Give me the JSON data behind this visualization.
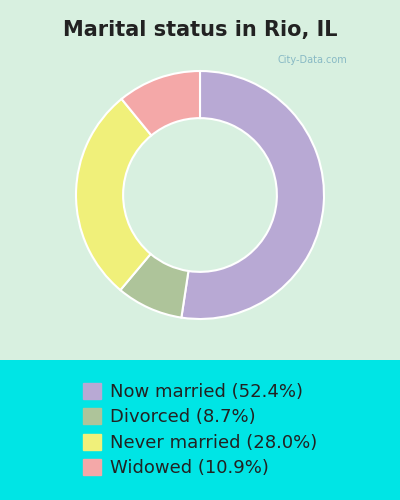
{
  "title": "Marital status in Rio, IL",
  "slices": [
    52.4,
    8.7,
    28.0,
    10.9
  ],
  "labels": [
    "Now married (52.4%)",
    "Divorced (8.7%)",
    "Never married (28.0%)",
    "Widowed (10.9%)"
  ],
  "colors": [
    "#b8a9d4",
    "#aec49a",
    "#f0f07a",
    "#f4a8a8"
  ],
  "background_top": "#d8f0e0",
  "background_bottom": "#00e5e5",
  "legend_background": "#00e5e5",
  "title_fontsize": 15,
  "legend_fontsize": 13,
  "donut_width": 0.38,
  "start_angle": 90
}
